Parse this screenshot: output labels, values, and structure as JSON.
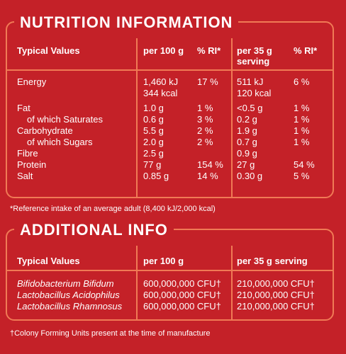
{
  "nutrition": {
    "title": "NUTRITION INFORMATION",
    "headers": {
      "typical": "Typical Values",
      "per100": "per 100 g",
      "ri100": "% RI*",
      "per35_line1": "per 35 g",
      "per35_line2": "serving",
      "ri35": "% RI*"
    },
    "rows": [
      {
        "label": "Energy",
        "per100": "1,460 kJ",
        "ri100": "17 %",
        "per35": "511 kJ",
        "ri35": "6 %"
      },
      {
        "label": "",
        "per100": "344 kcal",
        "ri100": "",
        "per35": "120 kcal",
        "ri35": ""
      },
      {
        "label": "Fat",
        "per100": "1.0 g",
        "ri100": "1 %",
        "per35": "<0.5 g",
        "ri35": "1 %"
      },
      {
        "label": "of which Saturates",
        "per100": "0.6 g",
        "ri100": "3 %",
        "per35": "0.2 g",
        "ri35": "1 %"
      },
      {
        "label": "Carbohydrate",
        "per100": "5.5 g",
        "ri100": "2 %",
        "per35": "1.9 g",
        "ri35": "1 %"
      },
      {
        "label": "of which Sugars",
        "per100": "2.0 g",
        "ri100": "2 %",
        "per35": "0.7 g",
        "ri35": "1 %"
      },
      {
        "label": "Fibre",
        "per100": "2.5 g",
        "ri100": "",
        "per35": "0.9 g",
        "ri35": ""
      },
      {
        "label": "Protein",
        "per100": "77 g",
        "ri100": "154 %",
        "per35": "27 g",
        "ri35": "54 %"
      },
      {
        "label": "Salt",
        "per100": "0.85 g",
        "ri100": "14 %",
        "per35": "0.30 g",
        "ri35": "5 %"
      }
    ],
    "footnote": "*Reference intake of an average adult (8,400 kJ/2,000 kcal)"
  },
  "additional": {
    "title": "ADDITIONAL INFO",
    "headers": {
      "typical": "Typical Values",
      "per100": "per 100 g",
      "per35": "per 35 g serving"
    },
    "rows": [
      {
        "label": "Bifidobacterium Bifidum",
        "per100": "600,000,000 CFU†",
        "per35": "210,000,000 CFU†"
      },
      {
        "label": "Lactobacillus Acidophilus",
        "per100": "600,000,000 CFU†",
        "per35": "210,000,000 CFU†"
      },
      {
        "label": "Lactobacillus Rhamnosus",
        "per100": "600,000,000 CFU†",
        "per35": "210,000,000 CFU†"
      }
    ],
    "footnote": "†Colony Forming Units present at the time of manufacture"
  },
  "colors": {
    "background": "#c42128",
    "rule": "#f07a55",
    "text": "#ffffff"
  }
}
